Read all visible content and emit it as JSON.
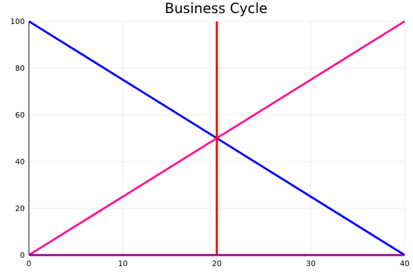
{
  "chart_data": {
    "type": "line",
    "title": "Business Cycle",
    "xlabel": "",
    "ylabel": "",
    "xlim": [
      0,
      40
    ],
    "ylim": [
      0,
      100
    ],
    "xticks": [
      0,
      10,
      20,
      30,
      40
    ],
    "yticks": [
      0,
      20,
      40,
      60,
      80,
      100
    ],
    "grid": true,
    "legend": "none",
    "series": [
      {
        "color": "#0000ff",
        "x": [
          0,
          40
        ],
        "y": [
          100,
          0
        ]
      },
      {
        "color": "#ff1493",
        "x": [
          0,
          40
        ],
        "y": [
          0,
          100
        ]
      },
      {
        "color": "#ff0000",
        "x": [
          20,
          20
        ],
        "y": [
          0,
          100
        ]
      },
      {
        "color": "#9b0090",
        "x": [
          0,
          40
        ],
        "y": [
          0,
          0
        ]
      }
    ]
  }
}
